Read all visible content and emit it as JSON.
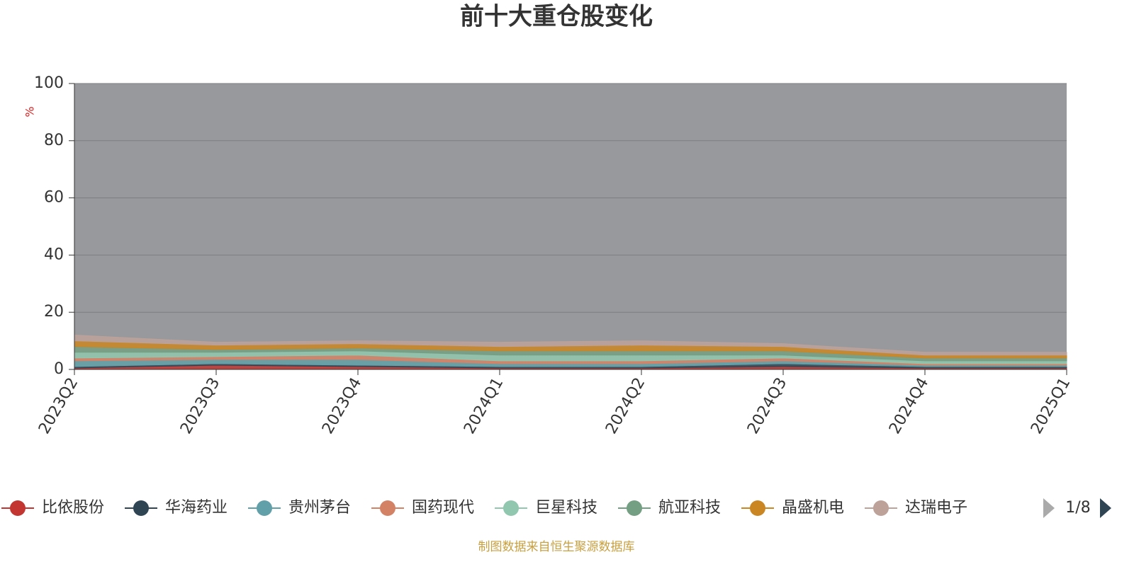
{
  "chart_data": {
    "type": "stacked_area",
    "title": "前十大重仓股变化",
    "y_label": "%",
    "categories": [
      "2023Q2",
      "2023Q3",
      "2023Q4",
      "2024Q1",
      "2024Q2",
      "2024Q3",
      "2024Q4",
      "2025Q1"
    ],
    "ylim": [
      0,
      100
    ],
    "yticks": [
      0,
      20,
      40,
      60,
      80,
      100
    ],
    "grid": true,
    "series": [
      {
        "name": "比依股份",
        "color": "#c23531",
        "values": [
          0.5,
          1.5,
          1,
          0.5,
          0.5,
          1,
          0.5,
          0.5
        ]
      },
      {
        "name": "华海药业",
        "color": "#2f4554",
        "values": [
          0.5,
          0.5,
          0.5,
          0.5,
          0.5,
          1,
          0.5,
          0.5
        ]
      },
      {
        "name": "贵州茅台",
        "color": "#61a0a8",
        "values": [
          2,
          1.5,
          2,
          1,
          1,
          1,
          0.5,
          0.5
        ]
      },
      {
        "name": "国药现代",
        "color": "#d48265",
        "values": [
          1,
          1,
          1.5,
          1,
          1,
          1,
          0.5,
          0.5
        ]
      },
      {
        "name": "巨星科技",
        "color": "#91c7ae",
        "values": [
          2,
          1.5,
          1.5,
          2,
          2,
          1,
          1,
          1
        ]
      },
      {
        "name": "航亚科技",
        "color": "#749f83",
        "values": [
          2,
          1,
          1,
          1.5,
          1.5,
          1.5,
          1,
          1
        ]
      },
      {
        "name": "晶盛机电",
        "color": "#ca8622",
        "values": [
          2,
          1.5,
          1.5,
          1.5,
          2,
          1.5,
          1,
          1
        ]
      },
      {
        "name": "达瑞电子",
        "color": "#bda29a",
        "values": [
          2,
          1,
          1,
          1.5,
          1.5,
          1,
          1,
          1
        ]
      }
    ],
    "legend_page": "1/8",
    "source": "制图数据来自恒生聚源数据库"
  }
}
